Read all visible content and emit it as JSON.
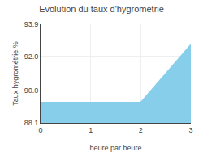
{
  "chart_data": {
    "type": "area",
    "title": "Evolution du taux d'hygrométrie",
    "xlabel": "heure par heure",
    "ylabel": "Taux hygrométrie %",
    "x": [
      0,
      2,
      3
    ],
    "values": [
      89.3,
      89.3,
      92.7
    ],
    "color": "#87CEEB",
    "xlim": [
      0,
      3
    ],
    "ylim": [
      88.1,
      93.9
    ],
    "xticks": [
      0,
      1,
      2,
      3
    ],
    "yticks": [
      88.1,
      {
        "value": 90.0,
        "label": "90.0"
      },
      {
        "value": 92.0,
        "label": "92.0"
      },
      93.9
    ],
    "grid": true
  }
}
